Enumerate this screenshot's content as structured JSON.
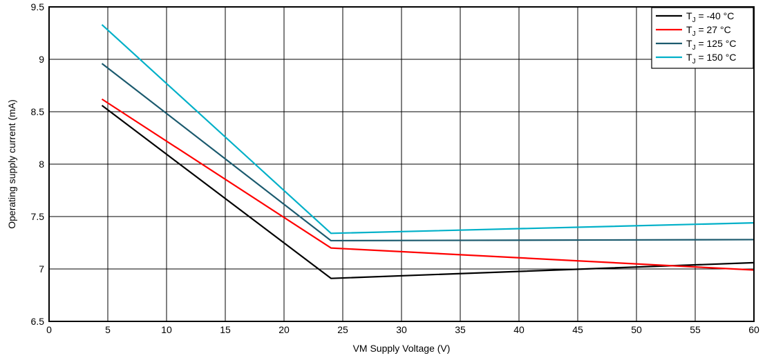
{
  "chart_data": {
    "type": "line",
    "title": "",
    "xlabel": "VM Supply Voltage (V)",
    "ylabel": "Operating supply current (mA)",
    "xlim": [
      0,
      60
    ],
    "ylim": [
      6.5,
      9.5
    ],
    "x_ticks": [
      "0",
      "5",
      "10",
      "15",
      "20",
      "25",
      "30",
      "35",
      "40",
      "45",
      "50",
      "55",
      "60"
    ],
    "y_ticks": [
      "6.5",
      "7",
      "7.5",
      "8",
      "8.5",
      "9",
      "9.5"
    ],
    "grid": true,
    "legend_position": "top-right",
    "series": [
      {
        "name": "T",
        "name_sub": "J",
        "name_rest": " = -40 °C",
        "color": "#000000",
        "points": [
          [
            4.5,
            8.56
          ],
          [
            24,
            6.91
          ],
          [
            60,
            7.06
          ]
        ]
      },
      {
        "name": "T",
        "name_sub": "J",
        "name_rest": " = 27 °C",
        "color": "#ff0000",
        "points": [
          [
            4.5,
            8.62
          ],
          [
            24,
            7.2
          ],
          [
            60,
            6.99
          ]
        ]
      },
      {
        "name": "T",
        "name_sub": "J",
        "name_rest": " = 125 °C",
        "color": "#1b5a6e",
        "points": [
          [
            4.5,
            8.96
          ],
          [
            24,
            7.27
          ],
          [
            60,
            7.28
          ]
        ]
      },
      {
        "name": "T",
        "name_sub": "J",
        "name_rest": " = 150 °C",
        "color": "#00b0c8",
        "points": [
          [
            4.5,
            9.33
          ],
          [
            24,
            7.34
          ],
          [
            60,
            7.44
          ]
        ]
      }
    ]
  }
}
